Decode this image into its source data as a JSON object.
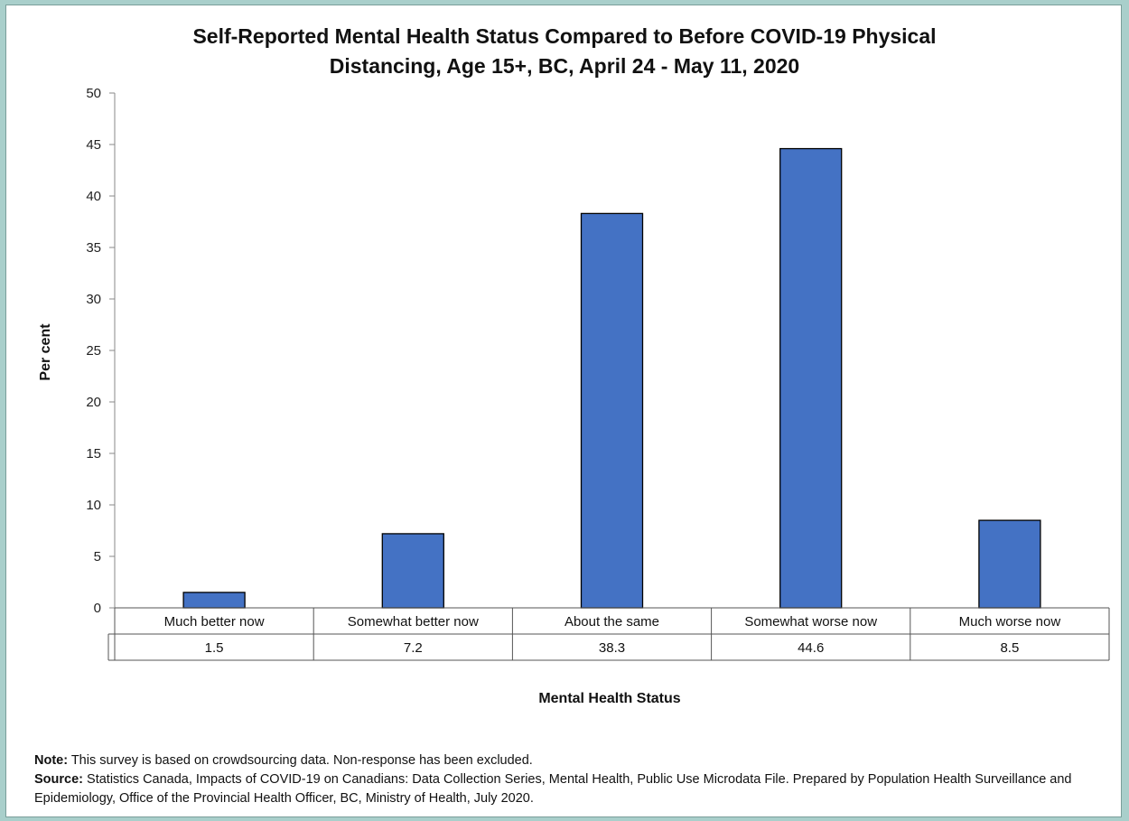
{
  "chart_data": {
    "type": "bar",
    "title": "Self-Reported Mental Health Status Compared to Before COVID-19 Physical\nDistancing, Age 15+, BC, April 24 - May 11, 2020",
    "ylabel": "Per cent",
    "xlabel": "Mental Health Status",
    "categories": [
      "Much better now",
      "Somewhat better now",
      "About the same",
      "Somewhat worse now",
      "Much worse now"
    ],
    "values": [
      1.5,
      7.2,
      38.3,
      44.6,
      8.5
    ],
    "value_labels": [
      "1.5",
      "7.2",
      "38.3",
      "44.6",
      "8.5"
    ],
    "ylim": [
      0,
      50
    ],
    "yticks": [
      0,
      5,
      10,
      15,
      20,
      25,
      30,
      35,
      40,
      45,
      50
    ],
    "bar_color": "#4472c4",
    "grid": false,
    "data_table": true
  },
  "notes": {
    "note_label": "Note:",
    "note_text": " This survey is based on crowdsourcing data.  Non-response has been excluded.",
    "source_label": "Source:",
    "source_text": " Statistics Canada, Impacts of COVID-19 on Canadians: Data Collection Series, Mental Health, Public Use Microdata File. Prepared by Population Health Surveillance and Epidemiology, Office of the Provincial Health Officer, BC, Ministry of Health, July 2020."
  }
}
